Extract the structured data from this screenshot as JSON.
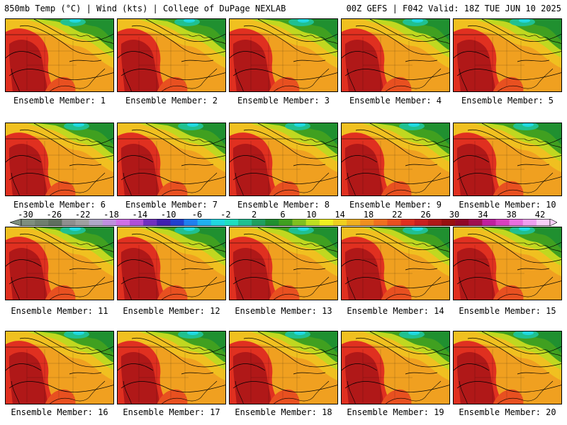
{
  "header": {
    "left": "850mb Temp (°C) | Wind (kts) | College of DuPage NEXLAB",
    "right": "00Z GEFS | F042 Valid: 18Z TUE JUN 10 2025"
  },
  "panels": [
    {
      "label": "Ensemble Member: 1"
    },
    {
      "label": "Ensemble Member: 2"
    },
    {
      "label": "Ensemble Member: 3"
    },
    {
      "label": "Ensemble Member: 4"
    },
    {
      "label": "Ensemble Member: 5"
    },
    {
      "label": "Ensemble Member: 6"
    },
    {
      "label": "Ensemble Member: 7"
    },
    {
      "label": "Ensemble Member: 8"
    },
    {
      "label": "Ensemble Member: 9"
    },
    {
      "label": "Ensemble Member: 10"
    },
    {
      "label": "Ensemble Member: 11"
    },
    {
      "label": "Ensemble Member: 12"
    },
    {
      "label": "Ensemble Member: 13"
    },
    {
      "label": "Ensemble Member: 14"
    },
    {
      "label": "Ensemble Member: 15"
    },
    {
      "label": "Ensemble Member: 16"
    },
    {
      "label": "Ensemble Member: 17"
    },
    {
      "label": "Ensemble Member: 18"
    },
    {
      "label": "Ensemble Member: 19"
    },
    {
      "label": "Ensemble Member: 20"
    }
  ],
  "colorbar": {
    "tick_labels": [
      "-30",
      "-26",
      "-22",
      "-18",
      "-14",
      "-10",
      "-6",
      "-2",
      "2",
      "6",
      "10",
      "14",
      "18",
      "22",
      "26",
      "30",
      "34",
      "38",
      "42"
    ],
    "colors": [
      "#7f8f7f",
      "#6f7f6f",
      "#5f6f5f",
      "#8f8f8f",
      "#a0a0a0",
      "#b0a8c8",
      "#c090e0",
      "#d070e8",
      "#b050d8",
      "#7030c0",
      "#4020b0",
      "#2040d0",
      "#2080f0",
      "#20b0f0",
      "#20d8e0",
      "#20e0c0",
      "#20c090",
      "#20a060",
      "#209030",
      "#40a020",
      "#80c020",
      "#c0e020",
      "#f0f020",
      "#f0d020",
      "#f0b020",
      "#f09020",
      "#f07020",
      "#e85020",
      "#e03020",
      "#c82020",
      "#b01818",
      "#981010",
      "#900828",
      "#a01050",
      "#c020a0",
      "#d840c0",
      "#e870e0",
      "#f0a0f0",
      "#f8d0f8"
    ]
  }
}
